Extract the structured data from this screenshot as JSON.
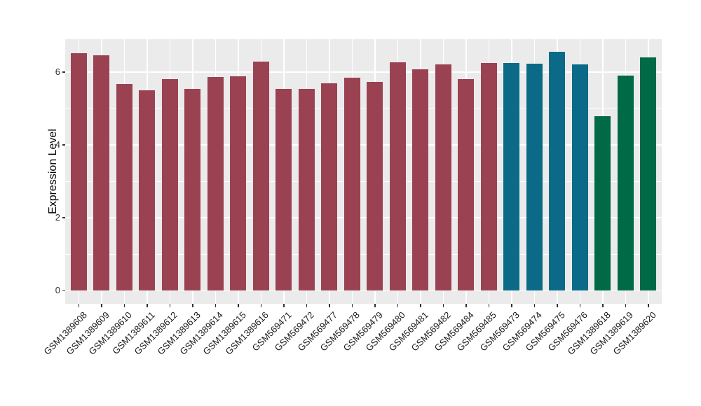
{
  "figure": {
    "background_color": "#ffffff",
    "panel_background_color": "#ebebeb",
    "grid_color": "#ffffff",
    "tick_color": "#333333",
    "axis_text_color": "#303030"
  },
  "chart_data": {
    "type": "bar",
    "title": "",
    "xlabel": "",
    "ylabel": "Expression Level",
    "ylim": [
      0,
      6.9
    ],
    "y_major_ticks": [
      0,
      2,
      4,
      6
    ],
    "y_minor_ticks": [
      1,
      3,
      5
    ],
    "grid": "on",
    "legend": "none",
    "categories": [
      "GSM1389608",
      "GSM1389609",
      "GSM1389610",
      "GSM1389611",
      "GSM1389612",
      "GSM1389613",
      "GSM1389614",
      "GSM1389615",
      "GSM1389616",
      "GSM569471",
      "GSM569472",
      "GSM569477",
      "GSM569478",
      "GSM569479",
      "GSM569480",
      "GSM569481",
      "GSM569482",
      "GSM569484",
      "GSM569485",
      "GSM569473",
      "GSM569474",
      "GSM569475",
      "GSM569476",
      "GSM1389618",
      "GSM1389619",
      "GSM1389620"
    ],
    "values": [
      6.51,
      6.46,
      5.67,
      5.5,
      5.8,
      5.53,
      5.87,
      5.89,
      6.28,
      5.54,
      5.53,
      5.69,
      5.85,
      5.73,
      6.26,
      6.07,
      6.21,
      5.8,
      6.25,
      6.24,
      6.23,
      6.55,
      6.21,
      4.78,
      5.91,
      6.41
    ],
    "bar_colors": [
      "#9B4252",
      "#9B4252",
      "#9B4252",
      "#9B4252",
      "#9B4252",
      "#9B4252",
      "#9B4252",
      "#9B4252",
      "#9B4252",
      "#9B4252",
      "#9B4252",
      "#9B4252",
      "#9B4252",
      "#9B4252",
      "#9B4252",
      "#9B4252",
      "#9B4252",
      "#9B4252",
      "#9B4252",
      "#0B6A87",
      "#0B6A87",
      "#0B6A87",
      "#0B6A87",
      "#006946",
      "#006946",
      "#006946"
    ],
    "color_groups": [
      {
        "color": "#9B4252",
        "count": 19
      },
      {
        "color": "#0B6A87",
        "count": 4
      },
      {
        "color": "#006946",
        "count": 3
      }
    ]
  }
}
